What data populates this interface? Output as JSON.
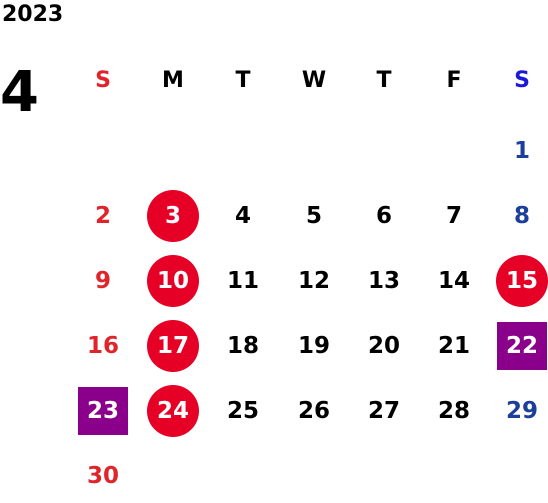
{
  "calendar": {
    "year": "2023",
    "month": "4",
    "weekdays": [
      "S",
      "M",
      "T",
      "W",
      "T",
      "F",
      "S"
    ],
    "weeks": [
      [
        null,
        null,
        null,
        null,
        null,
        null,
        {
          "day": "1",
          "mark": "none"
        }
      ],
      [
        {
          "day": "2",
          "mark": "none"
        },
        {
          "day": "3",
          "mark": "circle"
        },
        {
          "day": "4",
          "mark": "none"
        },
        {
          "day": "5",
          "mark": "none"
        },
        {
          "day": "6",
          "mark": "none"
        },
        {
          "day": "7",
          "mark": "none"
        },
        {
          "day": "8",
          "mark": "none"
        }
      ],
      [
        {
          "day": "9",
          "mark": "none"
        },
        {
          "day": "10",
          "mark": "circle"
        },
        {
          "day": "11",
          "mark": "none"
        },
        {
          "day": "12",
          "mark": "none"
        },
        {
          "day": "13",
          "mark": "none"
        },
        {
          "day": "14",
          "mark": "none"
        },
        {
          "day": "15",
          "mark": "circle"
        }
      ],
      [
        {
          "day": "16",
          "mark": "none"
        },
        {
          "day": "17",
          "mark": "circle"
        },
        {
          "day": "18",
          "mark": "none"
        },
        {
          "day": "19",
          "mark": "none"
        },
        {
          "day": "20",
          "mark": "none"
        },
        {
          "day": "21",
          "mark": "none"
        },
        {
          "day": "22",
          "mark": "square"
        }
      ],
      [
        {
          "day": "23",
          "mark": "square"
        },
        {
          "day": "24",
          "mark": "circle"
        },
        {
          "day": "25",
          "mark": "none"
        },
        {
          "day": "26",
          "mark": "none"
        },
        {
          "day": "27",
          "mark": "none"
        },
        {
          "day": "28",
          "mark": "none"
        },
        {
          "day": "29",
          "mark": "none"
        }
      ],
      [
        {
          "day": "30",
          "mark": "none"
        },
        null,
        null,
        null,
        null,
        null,
        null
      ]
    ]
  },
  "colors": {
    "sunday": "#e0242b",
    "saturday": "#1b3f9a",
    "weekday": "#000000",
    "circle_fill": "#e60026",
    "square_fill": "#8b008b",
    "saturday_header": "#1a1ad6"
  }
}
